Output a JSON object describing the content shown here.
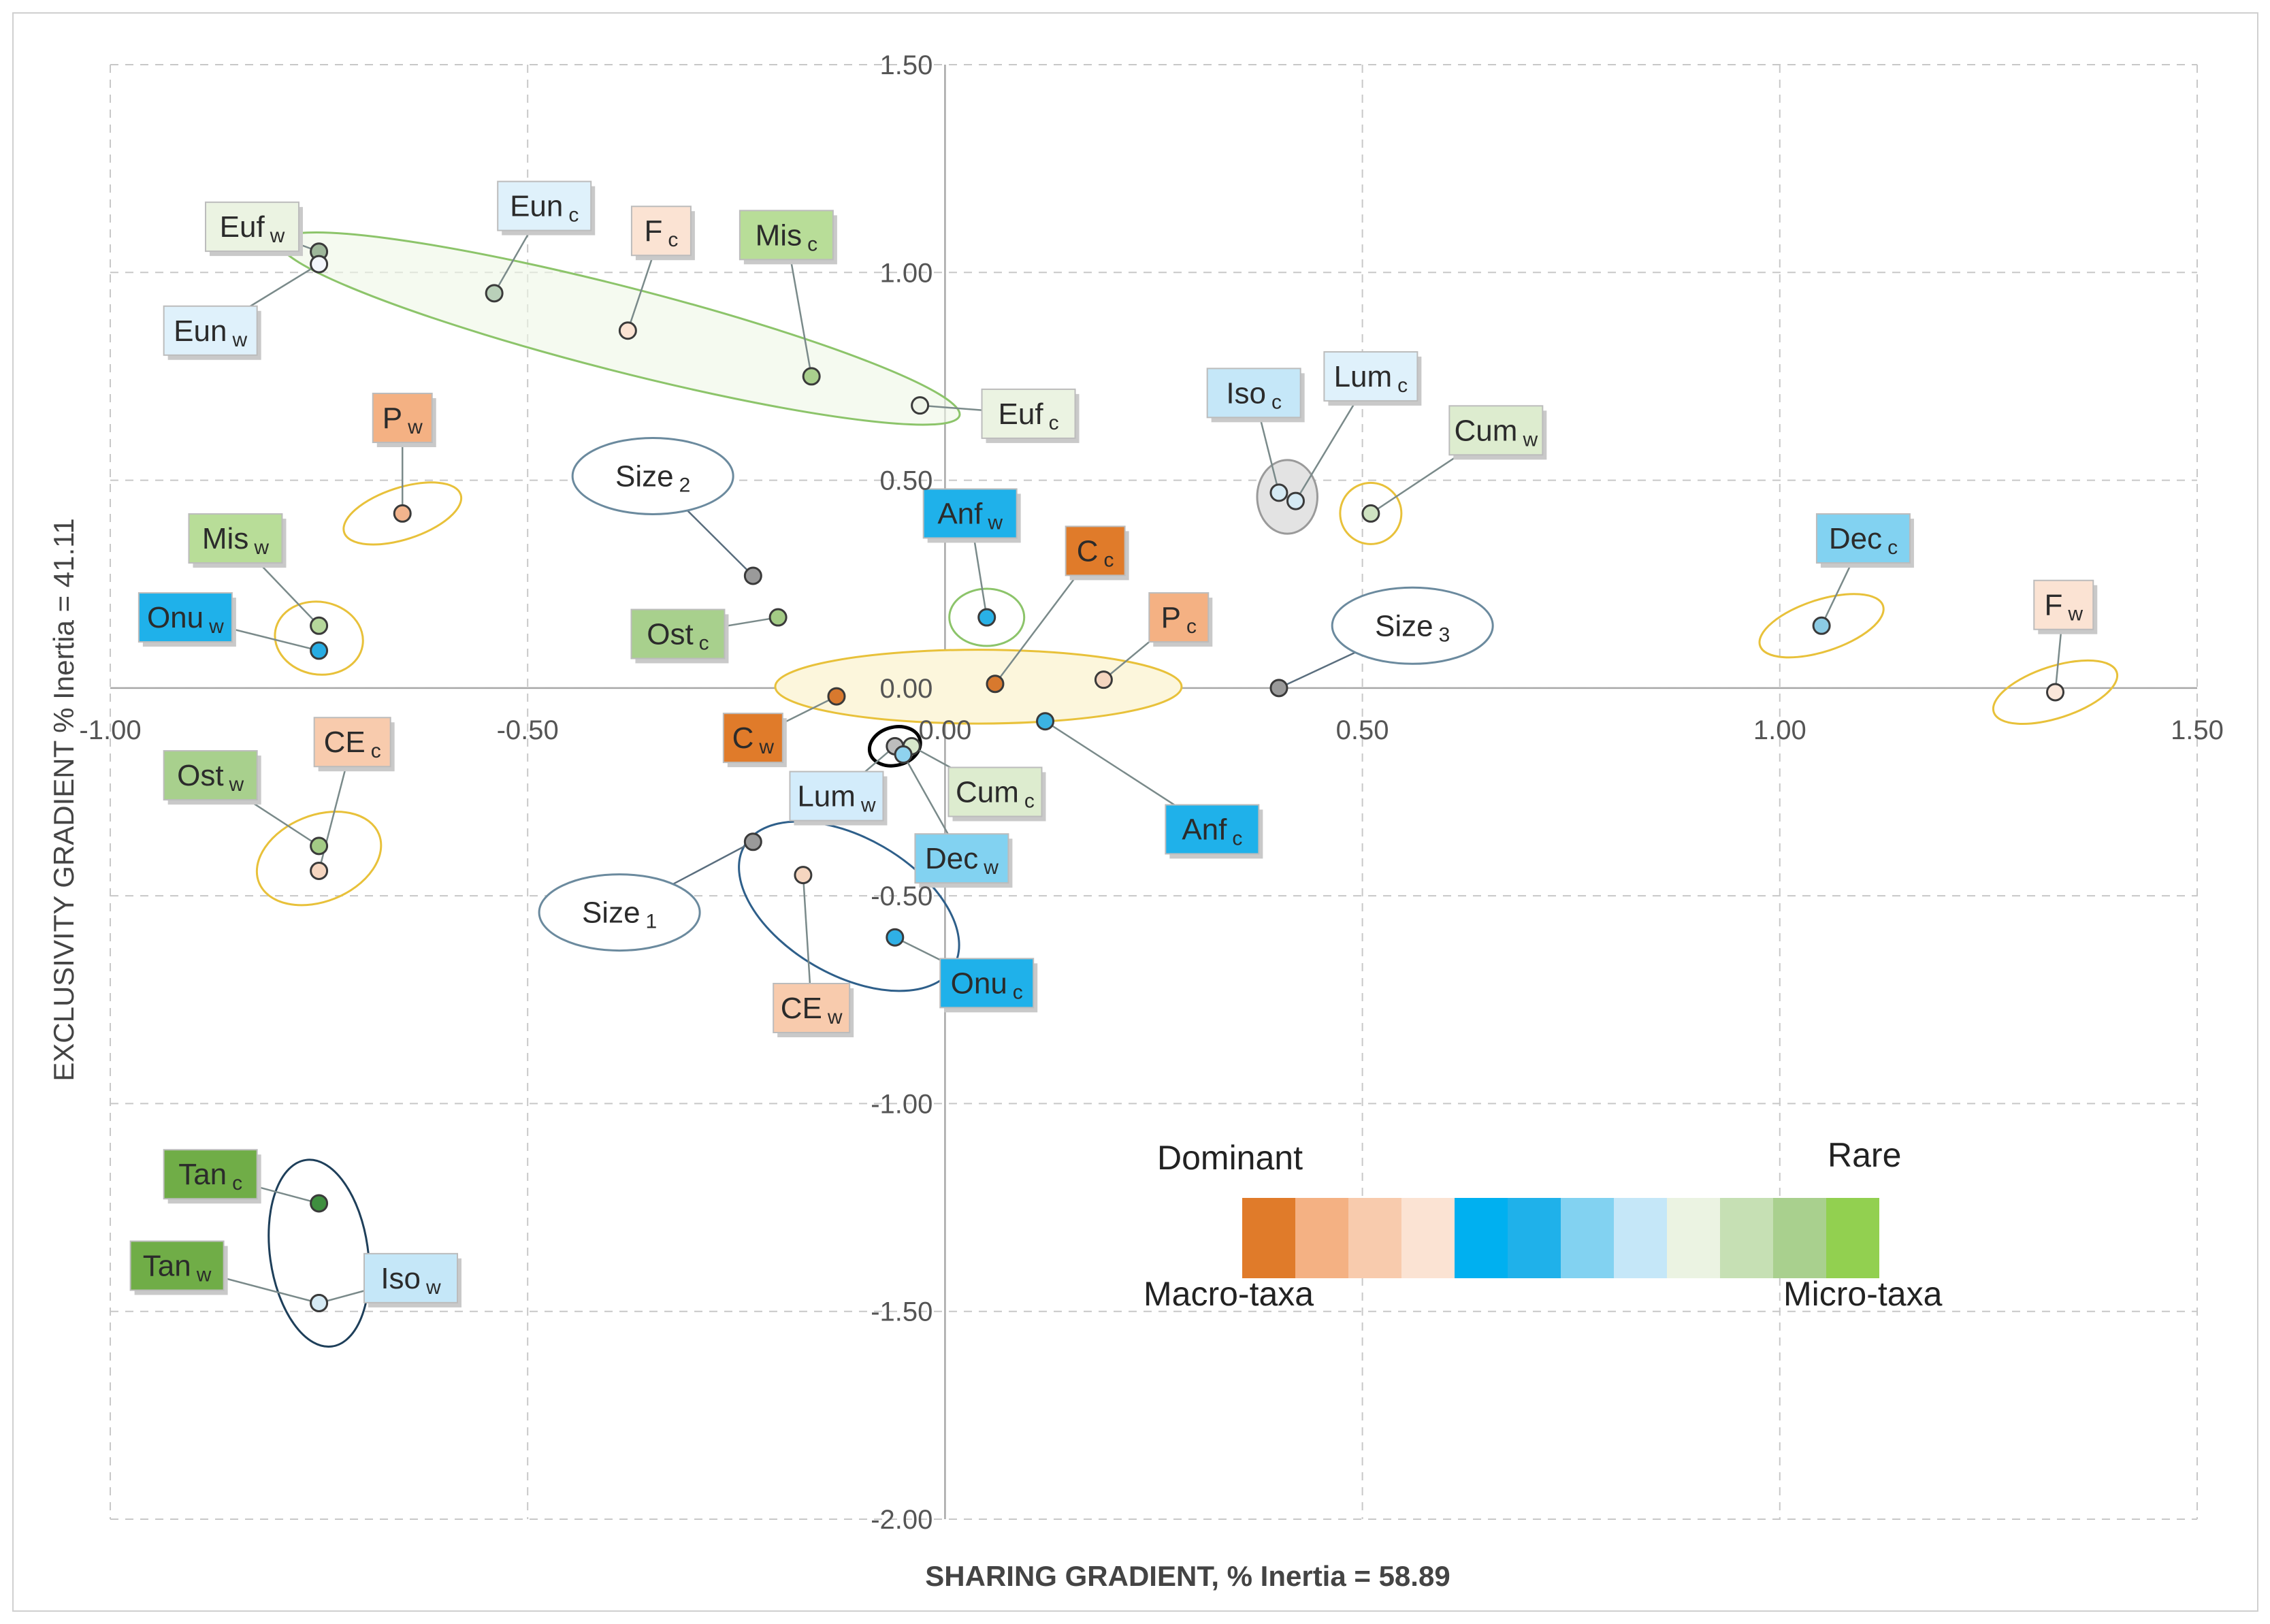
{
  "chart_data": {
    "type": "scatter",
    "title": "",
    "xlabel": "SHARING  GRADIENT,  % Inertia = 58.89",
    "ylabel": "EXCLUSIVITY GRADIENT  % Inertia = 41.11",
    "xlim": [
      -1.0,
      1.5
    ],
    "ylim": [
      -2.0,
      1.5
    ],
    "x_ticks": [
      "-1.00",
      "-0.50",
      "0.00",
      "0.50",
      "1.00",
      "1.50"
    ],
    "y_ticks": [
      "1.50",
      "1.00",
      "0.50",
      "0.00",
      "-0.50",
      "-1.00",
      "-1.50",
      "-2.00"
    ],
    "grid": true,
    "points": [
      {
        "id": "Euf_w",
        "name": "Euf",
        "sub": "w",
        "x": -0.75,
        "y": 1.05,
        "fill": "#9eb79a",
        "label_bg": "#ebf3e2",
        "lx": -0.83,
        "ly": 1.11
      },
      {
        "id": "Eun_w",
        "name": "Eun",
        "sub": "w",
        "x": -0.75,
        "y": 1.02,
        "fill": "#f3f6fb",
        "label_bg": "#dff1fb",
        "lx": -0.88,
        "ly": 0.86
      },
      {
        "id": "Eun_c",
        "name": "Eun",
        "sub": "c",
        "x": -0.54,
        "y": 0.95,
        "fill": "#b9d0b9",
        "label_bg": "#dff1fb",
        "lx": -0.48,
        "ly": 1.16
      },
      {
        "id": "F_c",
        "name": "F",
        "sub": "c",
        "x": -0.38,
        "y": 0.86,
        "fill": "#fbe3d3",
        "label_bg": "#fbe3d3",
        "lx": -0.34,
        "ly": 1.1
      },
      {
        "id": "Mis_c",
        "name": "Mis",
        "sub": "c",
        "x": -0.16,
        "y": 0.75,
        "fill": "#a9cf8d",
        "label_bg": "#b8dd98",
        "lx": -0.19,
        "ly": 1.09
      },
      {
        "id": "Euf_c",
        "name": "Euf",
        "sub": "c",
        "x": -0.03,
        "y": 0.68,
        "fill": "#eef4e8",
        "label_bg": "#ebf3e2",
        "lx": 0.1,
        "ly": 0.66
      },
      {
        "id": "P_w",
        "name": "P",
        "sub": "w",
        "x": -0.65,
        "y": 0.42,
        "fill": "#f2b48d",
        "label_bg": "#f4b183",
        "lx": -0.65,
        "ly": 0.65
      },
      {
        "id": "Mis_w",
        "name": "Mis",
        "sub": "w",
        "x": -0.75,
        "y": 0.15,
        "fill": "#b5d79b",
        "label_bg": "#b8dd98",
        "lx": -0.85,
        "ly": 0.36
      },
      {
        "id": "Onu_w",
        "name": "Onu",
        "sub": "w",
        "x": -0.75,
        "y": 0.09,
        "fill": "#27ace3",
        "label_bg": "#1fb1ea",
        "lx": -0.91,
        "ly": 0.17
      },
      {
        "id": "Size_2",
        "name": "Size",
        "sub": "2",
        "x": -0.23,
        "y": 0.27,
        "fill": "#9a9a9a",
        "label_bg": "#ffffff",
        "lx": -0.35,
        "ly": 0.51
      },
      {
        "id": "Ost_c",
        "name": "Ost",
        "sub": "c",
        "x": -0.2,
        "y": 0.17,
        "fill": "#a3cb85",
        "label_bg": "#a8d08d",
        "lx": -0.32,
        "ly": 0.13
      },
      {
        "id": "Anf_w",
        "name": "Anf",
        "sub": "w",
        "x": 0.05,
        "y": 0.17,
        "fill": "#29b1e6",
        "label_bg": "#1fb1ea",
        "lx": 0.03,
        "ly": 0.42
      },
      {
        "id": "C_c",
        "name": "C",
        "sub": "c",
        "x": 0.06,
        "y": 0.01,
        "fill": "#d8792e",
        "label_bg": "#e07b2a",
        "lx": 0.18,
        "ly": 0.33
      },
      {
        "id": "P_c",
        "name": "P",
        "sub": "c",
        "x": 0.19,
        "y": 0.02,
        "fill": "#f4d5bf",
        "label_bg": "#f4b183",
        "lx": 0.28,
        "ly": 0.17
      },
      {
        "id": "C_w",
        "name": "C",
        "sub": "w",
        "x": -0.13,
        "y": -0.02,
        "fill": "#d8792e",
        "label_bg": "#e07b2a",
        "lx": -0.23,
        "ly": -0.12
      },
      {
        "id": "Lum_w",
        "name": "Lum",
        "sub": "w",
        "x": -0.06,
        "y": -0.14,
        "fill": "#bdbdbd",
        "label_bg": "#d3ecfb",
        "lx": -0.13,
        "ly": -0.26
      },
      {
        "id": "Cum_c",
        "name": "Cum",
        "sub": "c",
        "x": -0.04,
        "y": -0.14,
        "fill": "#d8e8cc",
        "label_bg": "#ddeccf",
        "lx": 0.06,
        "ly": -0.25
      },
      {
        "id": "Dec_w",
        "name": "Dec",
        "sub": "w",
        "x": -0.05,
        "y": -0.16,
        "fill": "#8fd2ee",
        "label_bg": "#82d2f1",
        "lx": 0.02,
        "ly": -0.41
      },
      {
        "id": "Anf_c",
        "name": "Anf",
        "sub": "c",
        "x": 0.12,
        "y": -0.08,
        "fill": "#3bb3e3",
        "label_bg": "#1fb1ea",
        "lx": 0.32,
        "ly": -0.34
      },
      {
        "id": "Size_1",
        "name": "Size",
        "sub": "1",
        "x": -0.23,
        "y": -0.37,
        "fill": "#9a9a9a",
        "label_bg": "#ffffff",
        "lx": -0.39,
        "ly": -0.54
      },
      {
        "id": "CE_w",
        "name": "CE",
        "sub": "w",
        "x": -0.17,
        "y": -0.45,
        "fill": "#f6d6c0",
        "label_bg": "#f8cbad",
        "lx": -0.16,
        "ly": -0.77
      },
      {
        "id": "Onu_c",
        "name": "Onu",
        "sub": "c",
        "x": -0.06,
        "y": -0.6,
        "fill": "#2fb0e6",
        "label_bg": "#1fb1ea",
        "lx": 0.05,
        "ly": -0.71
      },
      {
        "id": "Iso_c",
        "name": "Iso",
        "sub": "c",
        "x": 0.4,
        "y": 0.47,
        "fill": "#d5eaf4",
        "label_bg": "#c5e7f8",
        "lx": 0.37,
        "ly": 0.71
      },
      {
        "id": "Lum_c",
        "name": "Lum",
        "sub": "c",
        "x": 0.42,
        "y": 0.45,
        "fill": "#d5eaf4",
        "label_bg": "#dff1fb",
        "lx": 0.51,
        "ly": 0.75
      },
      {
        "id": "Cum_w",
        "name": "Cum",
        "sub": "w",
        "x": 0.51,
        "y": 0.42,
        "fill": "#cfe3c2",
        "label_bg": "#ddeccf",
        "lx": 0.66,
        "ly": 0.62
      },
      {
        "id": "Size_3",
        "name": "Size",
        "sub": "3",
        "x": 0.4,
        "y": 0.0,
        "fill": "#9a9a9a",
        "label_bg": "#ffffff",
        "lx": 0.56,
        "ly": 0.15
      },
      {
        "id": "Dec_c",
        "name": "Dec",
        "sub": "c",
        "x": 1.05,
        "y": 0.15,
        "fill": "#8ccbe4",
        "label_bg": "#82d2f1",
        "lx": 1.1,
        "ly": 0.36
      },
      {
        "id": "F_w",
        "name": "F",
        "sub": "w",
        "x": 1.33,
        "y": -0.01,
        "fill": "#fbe7da",
        "label_bg": "#fbe3d3",
        "lx": 1.34,
        "ly": 0.2
      },
      {
        "id": "Ost_w",
        "name": "Ost",
        "sub": "w",
        "x": -0.75,
        "y": -0.38,
        "fill": "#a3cb85",
        "label_bg": "#a8d08d",
        "lx": -0.88,
        "ly": -0.21
      },
      {
        "id": "CE_c",
        "name": "CE",
        "sub": "c",
        "x": -0.75,
        "y": -0.44,
        "fill": "#f6d6c0",
        "label_bg": "#f8cbad",
        "lx": -0.71,
        "ly": -0.13
      },
      {
        "id": "Tan_c",
        "name": "Tan",
        "sub": "c",
        "x": -0.75,
        "y": -1.24,
        "fill": "#3f8f3f",
        "label_bg": "#70ad47",
        "lx": -0.88,
        "ly": -1.17
      },
      {
        "id": "Tan_w",
        "name": "Tan",
        "sub": "w",
        "x": -0.75,
        "y": -1.48,
        "fill": "#3f8f3f",
        "label_bg": "#70ad47",
        "lx": -0.92,
        "ly": -1.39
      },
      {
        "id": "Iso_w",
        "name": "Iso",
        "sub": "w",
        "x": -0.75,
        "y": -1.48,
        "fill": "#d5eaf4",
        "label_bg": "#c5e7f8",
        "lx": -0.64,
        "ly": -1.42
      }
    ],
    "legend": {
      "dominant_label": "Dominant",
      "rare_label": "Rare",
      "macro_label": "Macro-taxa",
      "micro_label": "Micro-taxa",
      "swatches": [
        "#e07b2a",
        "#f4b183",
        "#f8cbad",
        "#fbe3d3",
        "#00b0f0",
        "#1fb1ea",
        "#82d2f1",
        "#c5e7f8",
        "#ebf3e2",
        "#c6e0b4",
        "#a9d08e",
        "#92d050"
      ]
    }
  }
}
